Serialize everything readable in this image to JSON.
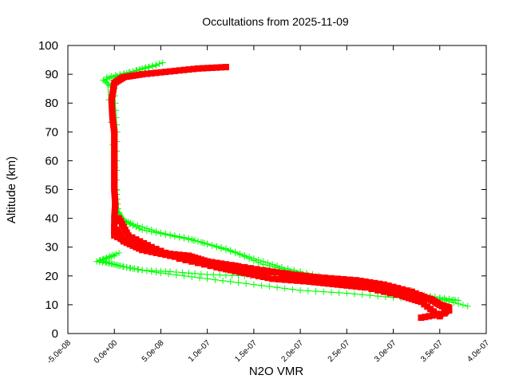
{
  "chart_data": {
    "type": "scatter",
    "title": "Occultations from 2025-11-09",
    "xlabel": "N2O VMR",
    "ylabel": "Altitude (km)",
    "xlim": [
      -5e-08,
      4e-07
    ],
    "ylim": [
      0,
      100
    ],
    "xticks": [
      -5e-08,
      0,
      5e-08,
      1e-07,
      1.5e-07,
      2e-07,
      2.5e-07,
      3e-07,
      3.5e-07,
      4e-07
    ],
    "xtick_labels": [
      "-5.0e-08",
      "0.0e+00",
      "5.0e-08",
      "1.0e-07",
      "1.5e-07",
      "2.0e-07",
      "2.5e-07",
      "3.0e-07",
      "3.5e-07",
      "4.0e-07"
    ],
    "yticks": [
      0,
      10,
      20,
      30,
      40,
      50,
      60,
      70,
      80,
      90,
      100
    ],
    "ytick_labels": [
      "0",
      "10",
      "20",
      "30",
      "40",
      "50",
      "60",
      "70",
      "80",
      "90",
      "100"
    ],
    "grid": false,
    "series": [
      {
        "color": "#00ff00",
        "marker": "plus",
        "line": true,
        "profiles": [
          {
            "x": [
              5.2e-08,
              3e-08,
              1e-08,
              -1.2e-08,
              0,
              3e-09,
              2e-09,
              5e-09,
              2e-08,
              5e-08,
              8e-08,
              1e-07,
              1.3e-07,
              1.6e-07,
              2e-07,
              2.5e-07,
              3e-07,
              3.5e-07,
              3.8e-07
            ],
            "y": [
              94,
              92,
              90,
              88,
              85,
              70,
              50,
              40,
              38,
              35,
              33,
              31,
              28,
              24,
              21,
              17,
              14,
              12,
              9.5
            ]
          },
          {
            "x": [
              4.5e-08,
              2e-08,
              -8e-09,
              5e-09,
              1e-08,
              3e-08,
              6e-08,
              9e-08,
              1.2e-07,
              1.5e-07,
              1.8e-07,
              2.2e-07,
              2.6e-07,
              3e-07,
              3.4e-07,
              3.7e-07
            ],
            "y": [
              93,
              91,
              89,
              42,
              39,
              36,
              34,
              32,
              29.5,
              26,
              23,
              20,
              17,
              15,
              13,
              11.5
            ]
          },
          {
            "x": [
              0,
              -1.9e-08,
              0,
              2e-08,
              5e-08,
              1e-07,
              1.5e-07,
              2e-07,
              2.5e-07,
              3e-07,
              3.5e-07,
              3.7e-07
            ],
            "y": [
              27,
              25,
              24,
              22.5,
              21,
              19,
              17,
              15,
              14,
              12.5,
              11.8,
              11.5
            ]
          },
          {
            "x": [
              5e-09,
              -1.5e-08,
              5e-09,
              3e-08,
              6e-08,
              1e-07,
              1.4e-07,
              1.8e-07,
              2.2e-07,
              2.7e-07,
              3.2e-07
            ],
            "y": [
              28,
              25.5,
              23.5,
              22,
              21.5,
              20.5,
              20,
              19.5,
              18.5,
              17,
              15
            ]
          }
        ]
      },
      {
        "color": "#ff0000",
        "marker": "square",
        "line": true,
        "profiles": [
          {
            "x": [
              1.2e-07,
              9e-08,
              6e-08,
              3e-08,
              1e-08,
              0,
              -3e-09,
              -2e-09,
              0,
              0,
              0,
              0,
              0,
              1e-09,
              0
            ],
            "y": [
              92.5,
              92,
              91,
              90,
              89,
              87,
              81,
              75,
              70,
              65,
              60,
              55,
              50,
              45,
              40
            ]
          },
          {
            "x": [
              0,
              0,
              2e-08,
              5e-08,
              8e-08,
              1e-07,
              1.3e-07,
              1.5e-07,
              1.8e-07,
              2e-07,
              2.3e-07,
              2.5e-07,
              2.8e-07,
              3e-07,
              3.2e-07,
              3.4e-07,
              3.5e-07,
              3.6e-07,
              3.55e-07,
              3.3e-07
            ],
            "y": [
              38,
              34,
              31,
              28,
              27,
              25,
              23.5,
              22,
              21,
              20,
              19,
              18,
              17,
              15,
              14,
              12,
              10,
              9,
              7,
              5.5
            ]
          },
          {
            "x": [
              3e-09,
              1e-08,
              3e-08,
              6e-08,
              9e-08,
              1.2e-07,
              1.6e-07,
              1.9e-07,
              2.2e-07,
              2.6e-07,
              2.9e-07,
              3.2e-07,
              3.45e-07,
              3.6e-07
            ],
            "y": [
              36,
              32,
              29,
              27,
              25.5,
              24,
              22,
              20.5,
              19.5,
              18.5,
              17,
              14.5,
              11,
              8
            ]
          },
          {
            "x": [
              5e-09,
              1.5e-08,
              4e-08,
              7e-08,
              1.1e-07,
              1.4e-07,
              1.7e-07,
              2.1e-07,
              2.4e-07,
              2.7e-07,
              3.1e-07,
              3.3e-07,
              3.5e-07
            ],
            "y": [
              40,
              34,
              30,
              26,
              23,
              21,
              19,
              18,
              17,
              16,
              13,
              11,
              6
            ]
          }
        ]
      }
    ]
  }
}
